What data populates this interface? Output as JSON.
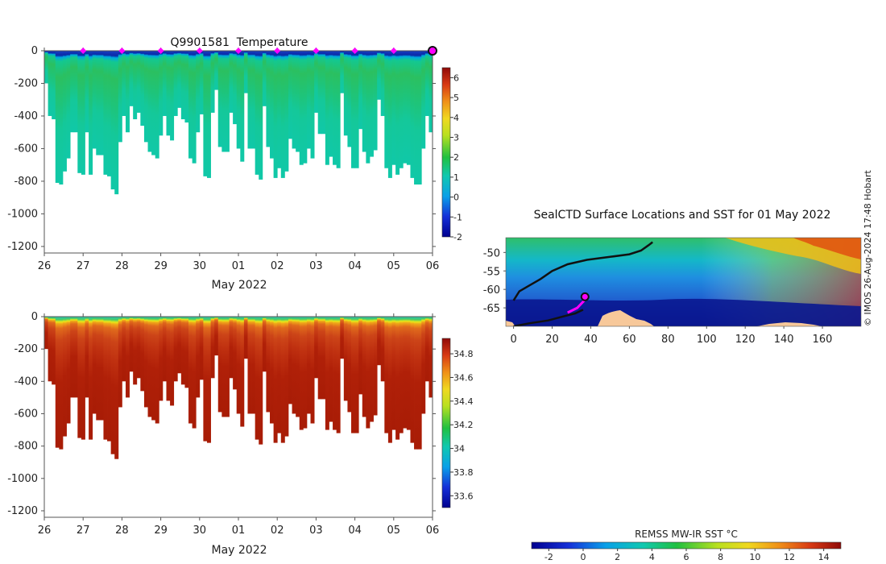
{
  "copyright": "© IMOS 26-Aug-2024 17:48 Hobart",
  "chart_data": [
    {
      "type": "heatmap",
      "title": "Q9901581  Temperature",
      "xlabel": "May 2022",
      "ylabel": "",
      "x_tick_labels": [
        "26",
        "27",
        "28",
        "29",
        "30",
        "01",
        "02",
        "03",
        "04",
        "05",
        "06"
      ],
      "x_range_days": [
        0,
        10
      ],
      "ylim": [
        -1240,
        0
      ],
      "y_ticks": [
        0,
        -200,
        -400,
        -600,
        -800,
        -1000,
        -1200
      ],
      "y_tick_labels": [
        "0",
        "-200",
        "-400",
        "-600",
        "-800",
        "-1000",
        "-1200"
      ],
      "colorbar": {
        "min": -2,
        "max": 6.5,
        "ticks": [
          6,
          5,
          4,
          3,
          2,
          1,
          0,
          -1,
          -2
        ],
        "tick_labels": [
          "6",
          "5",
          "4",
          "3",
          "2",
          "1",
          "0",
          "-1",
          "-2"
        ]
      },
      "profile_markers_day": [
        1,
        2,
        3,
        4,
        5,
        6,
        7,
        8,
        9
      ],
      "current_marker_day": 10,
      "marker_color": "#ff00ff",
      "profile_max_depth_m": [
        200,
        400,
        420,
        810,
        820,
        740,
        660,
        500,
        500,
        750,
        760,
        500,
        760,
        600,
        640,
        640,
        760,
        770,
        850,
        880,
        560,
        400,
        500,
        340,
        420,
        380,
        460,
        560,
        620,
        640,
        660,
        520,
        400,
        520,
        550,
        400,
        350,
        420,
        440,
        660,
        690,
        500,
        390,
        770,
        780,
        380,
        240,
        590,
        620,
        620,
        380,
        450,
        600,
        680,
        260,
        600,
        600,
        760,
        790,
        340,
        590,
        660,
        780,
        720,
        780,
        740,
        540,
        600,
        620,
        700,
        690,
        600,
        660,
        380,
        510,
        510,
        700,
        650,
        700,
        720,
        260,
        520,
        590,
        720,
        720,
        480,
        620,
        690,
        650,
        610,
        300,
        400,
        720,
        780,
        700,
        760,
        720,
        690,
        700,
        780,
        820,
        820,
        600,
        400,
        500
      ]
    },
    {
      "type": "heatmap",
      "title": "",
      "xlabel": "May 2022",
      "ylabel": "",
      "x_tick_labels": [
        "26",
        "27",
        "28",
        "29",
        "30",
        "01",
        "02",
        "03",
        "04",
        "05",
        "06"
      ],
      "x_range_days": [
        0,
        10
      ],
      "ylim": [
        -1240,
        0
      ],
      "y_ticks": [
        0,
        -200,
        -400,
        -600,
        -800,
        -1000,
        -1200
      ],
      "y_tick_labels": [
        "0",
        "-200",
        "-400",
        "-600",
        "-800",
        "-1000",
        "-1200"
      ],
      "colorbar": {
        "min": 33.5,
        "max": 34.93,
        "ticks": [
          34.8,
          34.6,
          34.4,
          34.2,
          34,
          33.8,
          33.6
        ],
        "tick_labels": [
          "34.8",
          "34.6",
          "34.4",
          "34.2",
          "34",
          "33.8",
          "33.6"
        ]
      }
    },
    {
      "type": "map",
      "title": "SealCTD Surface Locations and SST for 01 May 2022",
      "x_tick_labels": [
        "0",
        "20",
        "40",
        "60",
        "80",
        "100",
        "120",
        "140",
        "160"
      ],
      "x_ticks": [
        0,
        20,
        40,
        60,
        80,
        100,
        120,
        140,
        160
      ],
      "xlim": [
        -4,
        180
      ],
      "y_tick_labels": [
        "-50",
        "-55",
        "-60",
        "-65"
      ],
      "y_ticks": [
        -50,
        -55,
        -60,
        -65
      ],
      "ylim": [
        -70,
        -46
      ],
      "colorbar": {
        "label": "REMSS MW-IR SST °C",
        "min": -3,
        "max": 15,
        "ticks": [
          -2,
          0,
          2,
          4,
          6,
          8,
          10,
          12,
          14
        ],
        "tick_labels": [
          "-2",
          "0",
          "2",
          "4",
          "6",
          "8",
          "10",
          "12",
          "14"
        ]
      },
      "track": [
        {
          "lon": 0,
          "lat": -70.0
        },
        {
          "lon": 8,
          "lat": -69.2
        },
        {
          "lon": 18,
          "lat": -68.4
        },
        {
          "lon": 26,
          "lat": -67.3
        },
        {
          "lon": 32,
          "lat": -66.5
        },
        {
          "lon": 36,
          "lat": -65.5
        }
      ],
      "track_recent": [
        {
          "lon": 28,
          "lat": -66.3
        },
        {
          "lon": 33,
          "lat": -65.0
        },
        {
          "lon": 37,
          "lat": -62.8
        }
      ],
      "track_earlier": [
        {
          "lon": 0,
          "lat": -63.0
        },
        {
          "lon": 3,
          "lat": -60.5
        },
        {
          "lon": 8,
          "lat": -59.0
        },
        {
          "lon": 14,
          "lat": -57.2
        },
        {
          "lon": 20,
          "lat": -55.0
        },
        {
          "lon": 28,
          "lat": -53.2
        },
        {
          "lon": 38,
          "lat": -52.0
        },
        {
          "lon": 50,
          "lat": -51.2
        },
        {
          "lon": 60,
          "lat": -50.5
        },
        {
          "lon": 66,
          "lat": -49.5
        },
        {
          "lon": 70,
          "lat": -48.0
        },
        {
          "lon": 72,
          "lat": -47.2
        }
      ],
      "current_location": {
        "lon": 37,
        "lat": -62.0
      }
    }
  ]
}
